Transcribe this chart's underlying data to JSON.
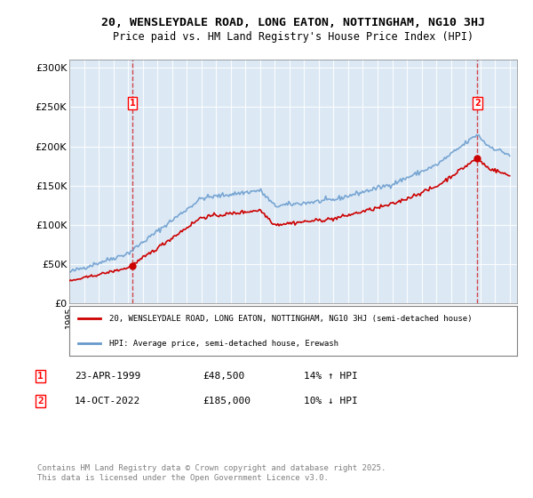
{
  "title_line1": "20, WENSLEYDALE ROAD, LONG EATON, NOTTINGHAM, NG10 3HJ",
  "title_line2": "Price paid vs. HM Land Registry's House Price Index (HPI)",
  "ylabel": "",
  "bg_color": "#dce9f5",
  "plot_bg_color": "#dce9f5",
  "sale1_date": "23-APR-1999",
  "sale1_price": 48500,
  "sale1_label": "14% ↑ HPI",
  "sale2_date": "14-OCT-2022",
  "sale2_price": 185000,
  "sale2_label": "10% ↓ HPI",
  "legend_line1": "20, WENSLEYDALE ROAD, LONG EATON, NOTTINGHAM, NG10 3HJ (semi-detached house)",
  "legend_line2": "HPI: Average price, semi-detached house, Erewash",
  "footer": "Contains HM Land Registry data © Crown copyright and database right 2025.\nThis data is licensed under the Open Government Licence v3.0.",
  "red_color": "#cc0000",
  "blue_color": "#6699cc",
  "ylim_max": 310000
}
